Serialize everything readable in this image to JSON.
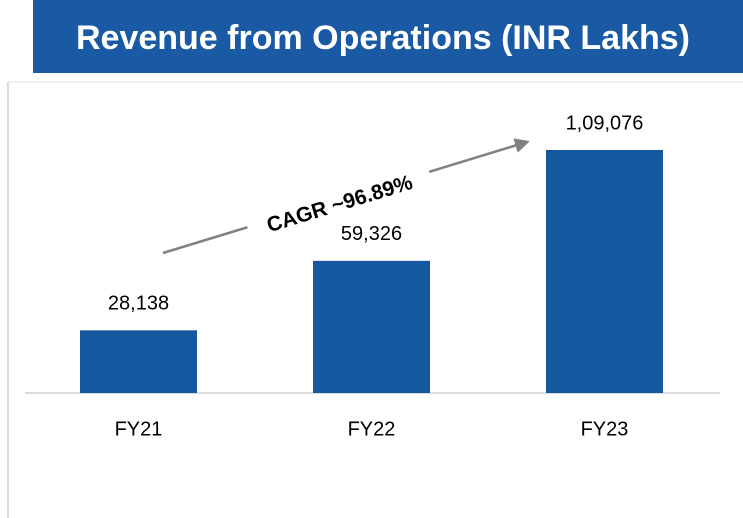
{
  "chart_data": {
    "type": "bar",
    "title": "Revenue from Operations (INR Lakhs)",
    "categories": [
      "FY21",
      "FY22",
      "FY23"
    ],
    "values": [
      28138,
      59326,
      109076
    ],
    "value_labels": [
      "28,138",
      "59,326",
      "1,09,076"
    ],
    "color": "#1558a0",
    "annotation": "CAGR ~96.89%"
  }
}
